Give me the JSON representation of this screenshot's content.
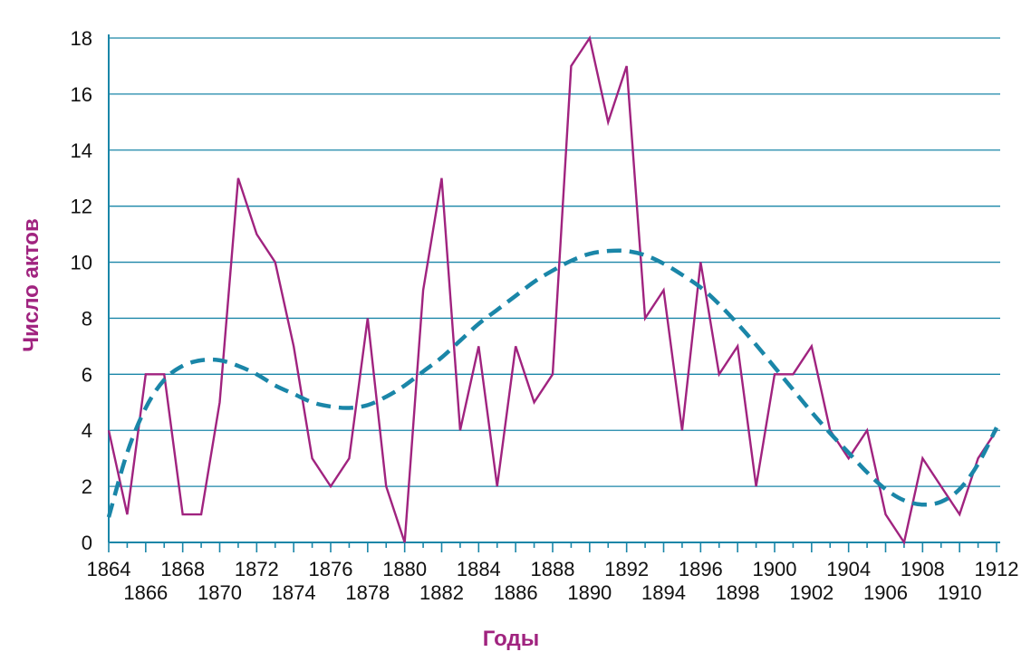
{
  "chart_data": {
    "type": "line",
    "title": "",
    "xlabel": "Годы",
    "ylabel": "Число актов",
    "xlim": [
      1864,
      1912
    ],
    "ylim": [
      0,
      18
    ],
    "yticks": [
      0,
      2,
      4,
      6,
      8,
      10,
      12,
      14,
      16,
      18
    ],
    "xticks_top_row": [
      1864,
      1868,
      1872,
      1876,
      1880,
      1884,
      1888,
      1892,
      1896,
      1900,
      1904,
      1908,
      1912
    ],
    "xticks_bottom_row": [
      1866,
      1870,
      1874,
      1878,
      1882,
      1886,
      1890,
      1894,
      1898,
      1902,
      1906,
      1910
    ],
    "grid": true,
    "colors": {
      "series": "#a0237f",
      "trend": "#1a86a8",
      "grid": "#1a86a8",
      "axis": "#1a86a8",
      "label": "#a0237f"
    },
    "series": [
      {
        "style": "solid",
        "x": [
          1864,
          1865,
          1866,
          1867,
          1868,
          1869,
          1870,
          1871,
          1872,
          1873,
          1874,
          1875,
          1876,
          1877,
          1878,
          1879,
          1880,
          1881,
          1882,
          1883,
          1884,
          1885,
          1886,
          1887,
          1888,
          1889,
          1890,
          1891,
          1892,
          1893,
          1894,
          1895,
          1896,
          1897,
          1898,
          1899,
          1900,
          1901,
          1902,
          1903,
          1904,
          1905,
          1906,
          1907,
          1908,
          1909,
          1910,
          1911,
          1912
        ],
        "values": [
          4,
          1,
          6,
          6,
          1,
          1,
          5,
          13,
          11,
          10,
          7,
          3,
          2,
          3,
          8,
          2,
          0,
          9,
          13,
          4,
          7,
          2,
          7,
          5,
          6,
          17,
          18,
          15,
          17,
          8,
          9,
          4,
          10,
          6,
          7,
          2,
          6,
          6,
          7,
          4,
          3,
          4,
          1,
          0,
          3,
          2,
          1,
          3,
          4
        ]
      },
      {
        "style": "dashed",
        "x": [
          1864,
          1865,
          1866,
          1867,
          1868,
          1869,
          1870,
          1871,
          1872,
          1873,
          1874,
          1875,
          1876,
          1877,
          1878,
          1879,
          1880,
          1881,
          1882,
          1883,
          1884,
          1885,
          1886,
          1887,
          1888,
          1889,
          1890,
          1891,
          1892,
          1893,
          1894,
          1895,
          1896,
          1897,
          1898,
          1899,
          1900,
          1901,
          1902,
          1903,
          1904,
          1905,
          1906,
          1907,
          1908,
          1909,
          1910,
          1911,
          1912
        ],
        "values": [
          0.9,
          3.2,
          4.8,
          5.8,
          6.3,
          6.5,
          6.5,
          6.3,
          6.0,
          5.6,
          5.3,
          5.0,
          4.85,
          4.8,
          4.9,
          5.2,
          5.6,
          6.1,
          6.6,
          7.2,
          7.8,
          8.3,
          8.8,
          9.3,
          9.7,
          10.05,
          10.3,
          10.4,
          10.4,
          10.25,
          9.95,
          9.55,
          9.1,
          8.5,
          7.8,
          7.05,
          6.25,
          5.45,
          4.65,
          3.9,
          3.2,
          2.5,
          1.9,
          1.5,
          1.35,
          1.45,
          1.9,
          2.8,
          4.1
        ]
      }
    ]
  }
}
